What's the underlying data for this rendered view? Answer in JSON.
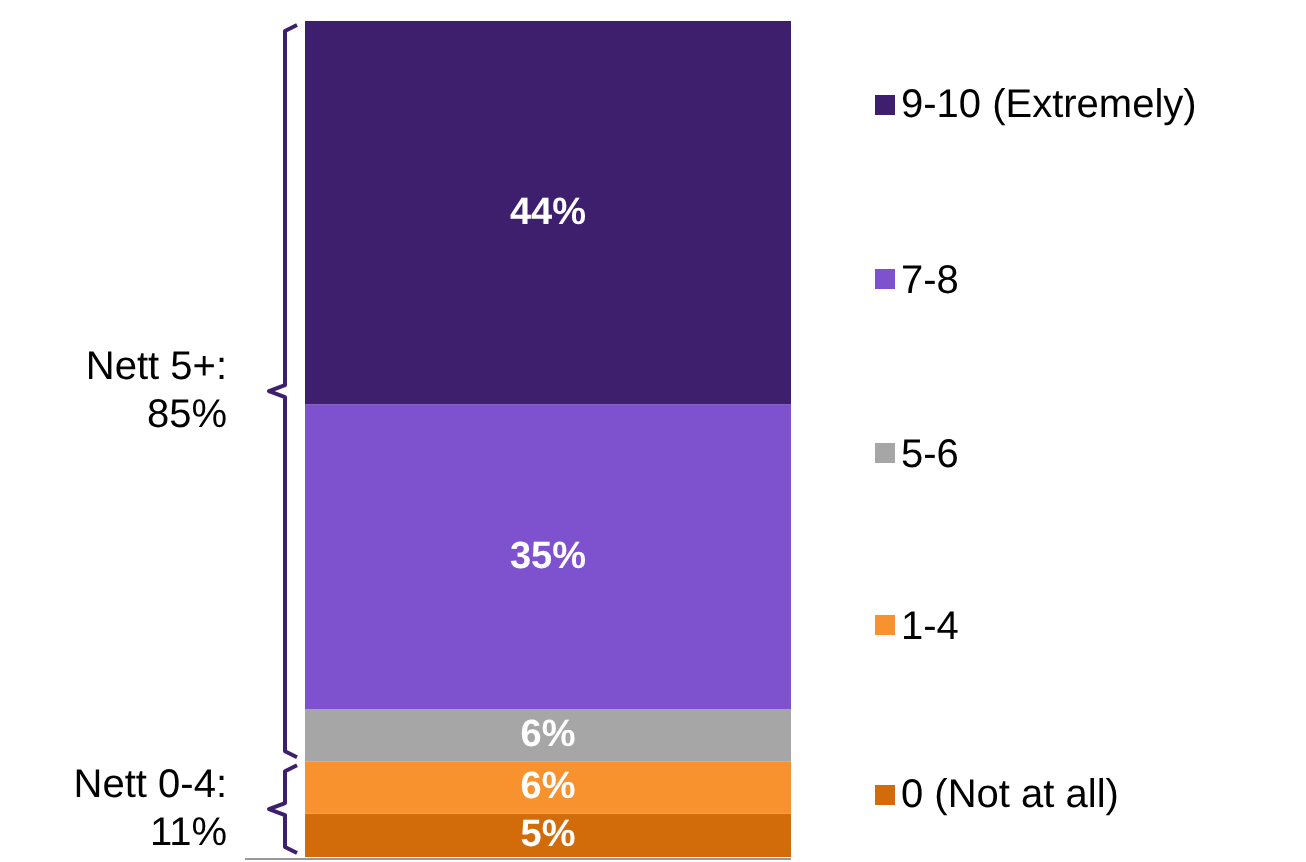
{
  "chart_data": {
    "type": "bar",
    "stacked": true,
    "categories": [
      null
    ],
    "series": [
      {
        "name": "0 (Not at all)",
        "color": "#d26b0a",
        "values": [
          5
        ],
        "value_labels": [
          "5%"
        ]
      },
      {
        "name": "1-4",
        "color": "#f7922f",
        "values": [
          6
        ],
        "value_labels": [
          "6%"
        ]
      },
      {
        "name": "5-6",
        "color": "#a6a6a6",
        "values": [
          6
        ],
        "value_labels": [
          "6%"
        ]
      },
      {
        "name": "7-8",
        "color": "#7e51cf",
        "values": [
          35
        ],
        "value_labels": [
          "35%"
        ]
      },
      {
        "name": "9-10 (Extremely)",
        "color": "#3d1f6d",
        "values": [
          44
        ],
        "value_labels": [
          "44%"
        ]
      }
    ],
    "legend": "right",
    "annotations": [
      "Nett 5+:\n85%",
      "Nett 0-4:\n11%"
    ]
  }
}
